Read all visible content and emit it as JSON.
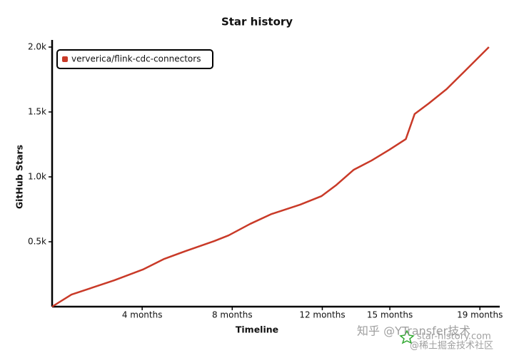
{
  "chart_data": {
    "type": "line",
    "title": "Star history",
    "x_label": "Timeline",
    "y_label": "GitHub Stars",
    "x": [
      0,
      0.86,
      1.81,
      2.76,
      4.03,
      4.98,
      5.94,
      7.2,
      7.84,
      8.79,
      9.75,
      11.02,
      11.97,
      12.6,
      13.4,
      14.19,
      14.98,
      15.71,
      16.1,
      16.73,
      17.52,
      18.32,
      19.4
    ],
    "series": [
      {
        "name": "ververica/flink-cdc-connectors",
        "color": "#c93a28",
        "values": [
          0,
          93,
          148,
          203,
          286,
          368,
          429,
          505,
          549,
          637,
          714,
          786,
          852,
          934,
          1055,
          1126,
          1209,
          1291,
          1484,
          1566,
          1676,
          1813,
          2000
        ]
      }
    ],
    "xlim": [
      0,
      19.5
    ],
    "xticks": [
      {
        "value": 4,
        "label": "4 months"
      },
      {
        "value": 8,
        "label": "8 months"
      },
      {
        "value": 12,
        "label": "12 months"
      },
      {
        "value": 15,
        "label": "15 months"
      },
      {
        "value": 19,
        "label": "19 months"
      }
    ],
    "ylim": [
      0,
      2000
    ],
    "yticks": [
      {
        "value": 500,
        "label": "0.5k"
      },
      {
        "value": 1000,
        "label": "1.0k"
      },
      {
        "value": 1500,
        "label": "1.5k"
      },
      {
        "value": 2000,
        "label": "2.0k"
      }
    ],
    "legend": "top-left",
    "watermarks": [
      "star-history.com",
      "知乎 @YTransfer技术",
      "@稀土掘金技术社区"
    ]
  }
}
